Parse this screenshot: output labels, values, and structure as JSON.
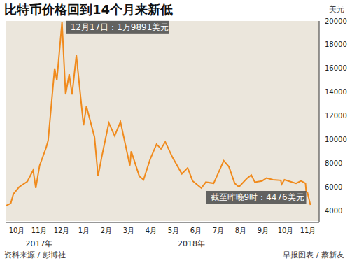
{
  "chart_data": {
    "type": "line",
    "title": "比特币价格回到14个月来新低",
    "y_label": "美元",
    "color": "#f08a1c",
    "grid": false,
    "x": [
      0.0,
      0.23,
      0.35,
      0.61,
      0.97,
      1.23,
      1.35,
      1.52,
      1.81,
      1.9,
      2.19,
      2.29,
      2.52,
      2.68,
      2.84,
      2.97,
      3.16,
      3.48,
      3.61,
      3.97,
      4.13,
      4.29,
      4.61,
      4.87,
      5.13,
      5.55,
      5.61,
      5.97,
      6.16,
      6.45,
      6.74,
      6.94,
      7.13,
      7.45,
      7.87,
      8.13,
      8.35,
      8.74,
      8.94,
      9.29,
      9.74,
      9.97,
      10.23,
      10.42,
      10.77,
      10.97,
      11.13,
      11.45,
      11.65,
      11.94,
      12.29,
      12.32,
      12.45,
      12.97,
      13.19,
      13.39,
      13.42,
      13.48,
      13.61
    ],
    "values": [
      4400,
      4600,
      5400,
      6000,
      6450,
      7400,
      5900,
      7800,
      9300,
      9900,
      16000,
      15000,
      19891,
      13800,
      15500,
      13800,
      17100,
      11200,
      12800,
      10200,
      6900,
      8500,
      11400,
      10300,
      11500,
      7800,
      9000,
      6900,
      6600,
      8300,
      9600,
      9200,
      9800,
      8500,
      7100,
      7600,
      6500,
      5900,
      6400,
      6300,
      8200,
      7700,
      6300,
      6000,
      6700,
      7000,
      6400,
      6500,
      6750,
      6600,
      6550,
      6200,
      6600,
      6300,
      6500,
      6300,
      5600,
      5500,
      4476
    ],
    "xlim": [
      0,
      14
    ],
    "xticks": [
      {
        "value": 0.5,
        "label": "10月"
      },
      {
        "value": 1.5,
        "label": "11月"
      },
      {
        "value": 2.5,
        "label": "12月"
      },
      {
        "value": 3.5,
        "label": "1月"
      },
      {
        "value": 4.5,
        "label": "2月"
      },
      {
        "value": 5.5,
        "label": "3月"
      },
      {
        "value": 6.5,
        "label": "4月"
      },
      {
        "value": 7.5,
        "label": "5月"
      },
      {
        "value": 8.5,
        "label": "6月"
      },
      {
        "value": 9.5,
        "label": "7月"
      },
      {
        "value": 10.5,
        "label": "8月"
      },
      {
        "value": 11.5,
        "label": "9月"
      },
      {
        "value": 12.5,
        "label": "10月"
      },
      {
        "value": 13.5,
        "label": "11月"
      }
    ],
    "year_ticks": [
      {
        "value": 1.5,
        "label": "2017年"
      },
      {
        "value": 8.3,
        "label": "2018年"
      }
    ],
    "ylim": [
      3000,
      20000
    ],
    "yticks": [
      4000,
      6000,
      8000,
      10000,
      12000,
      14000,
      16000,
      18000,
      20000
    ],
    "annotations": [
      {
        "text": "12月17日：1万9891美元",
        "x": 2.52,
        "y": 19891
      },
      {
        "text": "截至昨晚9时：4476美元",
        "x": 13.61,
        "y": 4476
      }
    ],
    "source": "资料来源 / 彭博社",
    "credit": "早报图表 / 蔡新友"
  }
}
